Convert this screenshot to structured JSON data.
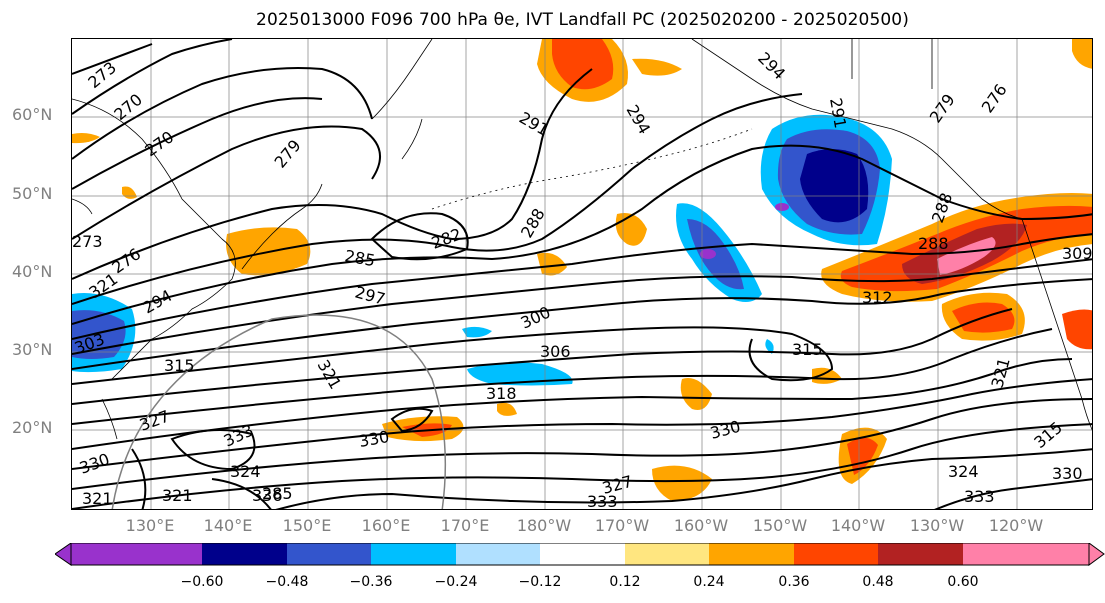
{
  "title": "2025013000 F096 700 hPa θe, IVT Landfall PC (2025020200 - 2025020500)",
  "lat_labels": [
    "60°N",
    "50°N",
    "40°N",
    "30°N",
    "20°N"
  ],
  "lon_labels": [
    "130°E",
    "140°E",
    "150°E",
    "160°E",
    "170°E",
    "180°W",
    "170°W",
    "160°W",
    "150°W",
    "140°W",
    "130°W",
    "120°W"
  ],
  "colorbar": {
    "ticks": [
      "−0.60",
      "−0.48",
      "−0.36",
      "−0.24",
      "−0.12",
      "0.12",
      "0.24",
      "0.36",
      "0.48",
      "0.60"
    ],
    "colors": [
      "#9932cc",
      "#00008b",
      "#3355cc",
      "#00bfff",
      "#b0e0ff",
      "#ffffff",
      "#ffe680",
      "#ffa500",
      "#ff4500",
      "#b22222",
      "#ff80a8"
    ]
  },
  "contour_labels": [
    "273",
    "270",
    "270",
    "279",
    "291",
    "294",
    "294",
    "291",
    "279",
    "276",
    "273",
    "276",
    "282",
    "288",
    "285",
    "297",
    "294",
    "300",
    "312",
    "309",
    "303",
    "306",
    "315",
    "315",
    "318",
    "321",
    "327",
    "321",
    "333",
    "330",
    "330",
    "324",
    "321",
    "330",
    "321",
    "336",
    "324",
    "333",
    "333",
    "327",
    "315",
    "330",
    "321",
    "288",
    "288",
    "285"
  ]
}
